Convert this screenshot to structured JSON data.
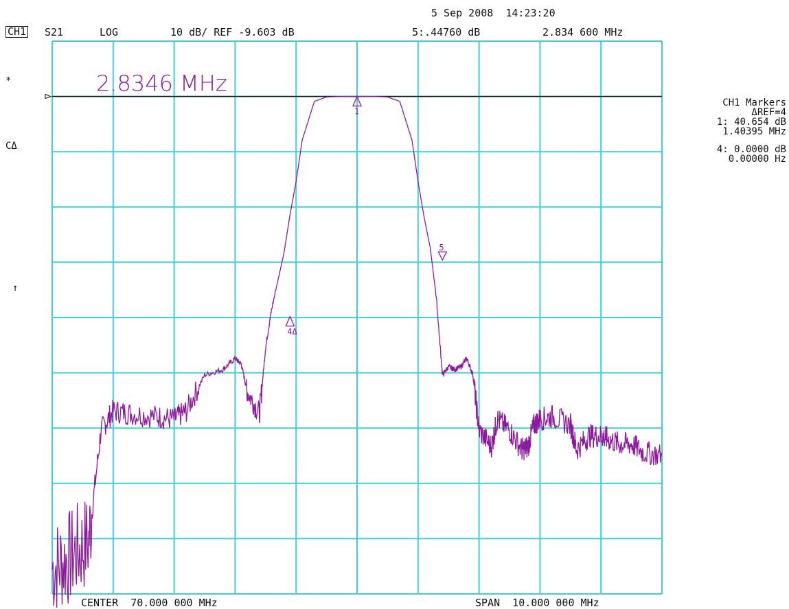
{
  "header": {
    "datetime": "5 Sep 2008  14:23:20",
    "channel": "CH1",
    "param": "S21",
    "format": "LOG",
    "scale": "10 dB/ REF -9.603 dB",
    "marker_readout": "5:.44760 dB",
    "marker_freq": "2.834 600 MHz"
  },
  "left_indicators": {
    "star": "*",
    "cdelta": "CΔ",
    "arrow": "↑"
  },
  "annotation": "2.8346 MHz",
  "markers_panel": {
    "title": "CH1 Markers",
    "ref": "ΔREF=4",
    "m1_value": "1: 40.654 dB",
    "m1_freq": "1.40395 MHz",
    "m4_value": "4: 0.0000 dB",
    "m4_freq": "0.00000 Hz"
  },
  "footer": {
    "center": "CENTER  70.000 000 MHz",
    "span": "SPAN  10.000 000 MHz"
  },
  "colors": {
    "grid": "#3fd0d6",
    "trace": "#8c1a9c",
    "reference_line": "#111111"
  },
  "chart_data": {
    "type": "line",
    "title": "",
    "xlabel": "",
    "ylabel": "",
    "x_unit": "MHz",
    "y_unit": "dB",
    "xlim": [
      65.0,
      75.0
    ],
    "ylim": [
      -99.603,
      0.397
    ],
    "grid": true,
    "x_divisions": 10,
    "y_divisions": 10,
    "reference_level_db": -9.603,
    "series": [
      {
        "x": [
          65.0,
          65.3,
          65.6,
          65.8,
          66.0,
          66.3,
          66.7,
          67.0,
          67.2,
          67.5,
          67.8,
          68.0,
          68.1,
          68.2,
          68.4,
          68.5,
          68.6,
          68.8,
          68.9,
          69.0,
          69.1,
          69.3,
          69.5,
          69.8,
          70.0,
          70.2,
          70.5,
          70.7,
          70.9,
          71.0,
          71.1,
          71.2,
          71.3,
          71.4,
          71.5,
          71.6,
          71.7,
          71.8,
          71.9,
          72.0,
          72.2,
          72.3,
          72.5,
          72.7,
          72.8,
          72.9,
          73.0,
          73.2,
          73.5,
          73.6,
          73.8,
          74.0,
          74.1,
          74.3,
          74.5,
          74.7,
          75.0
        ],
        "y": [
          -95.0,
          -93.0,
          -90.0,
          -70.0,
          -66.5,
          -67.0,
          -67.5,
          -68.0,
          -66.5,
          -60.0,
          -59.0,
          -57.0,
          -58.0,
          -63.0,
          -67.0,
          -55.0,
          -48.0,
          -38.0,
          -31.0,
          -25.0,
          -17.5,
          -10.5,
          -9.7,
          -9.6,
          -9.6,
          -9.6,
          -9.7,
          -10.5,
          -17.5,
          -25.0,
          -31.5,
          -37.0,
          -46.0,
          -60.0,
          -58.5,
          -59.0,
          -58.5,
          -57.0,
          -60.0,
          -70.0,
          -73.0,
          -68.0,
          -70.0,
          -73.5,
          -73.0,
          -69.0,
          -68.0,
          -67.5,
          -69.0,
          -73.5,
          -71.0,
          -71.0,
          -71.5,
          -72.5,
          -72.5,
          -74.0,
          -74.5
        ]
      }
    ],
    "markers": [
      {
        "id": "1",
        "x": 70.0,
        "y": -9.603,
        "label": "1"
      },
      {
        "id": "4",
        "x": 68.9,
        "y": -49.4,
        "label": "4Δ"
      },
      {
        "id": "5",
        "x": 71.4,
        "y": -39.2,
        "label": "5"
      }
    ]
  }
}
